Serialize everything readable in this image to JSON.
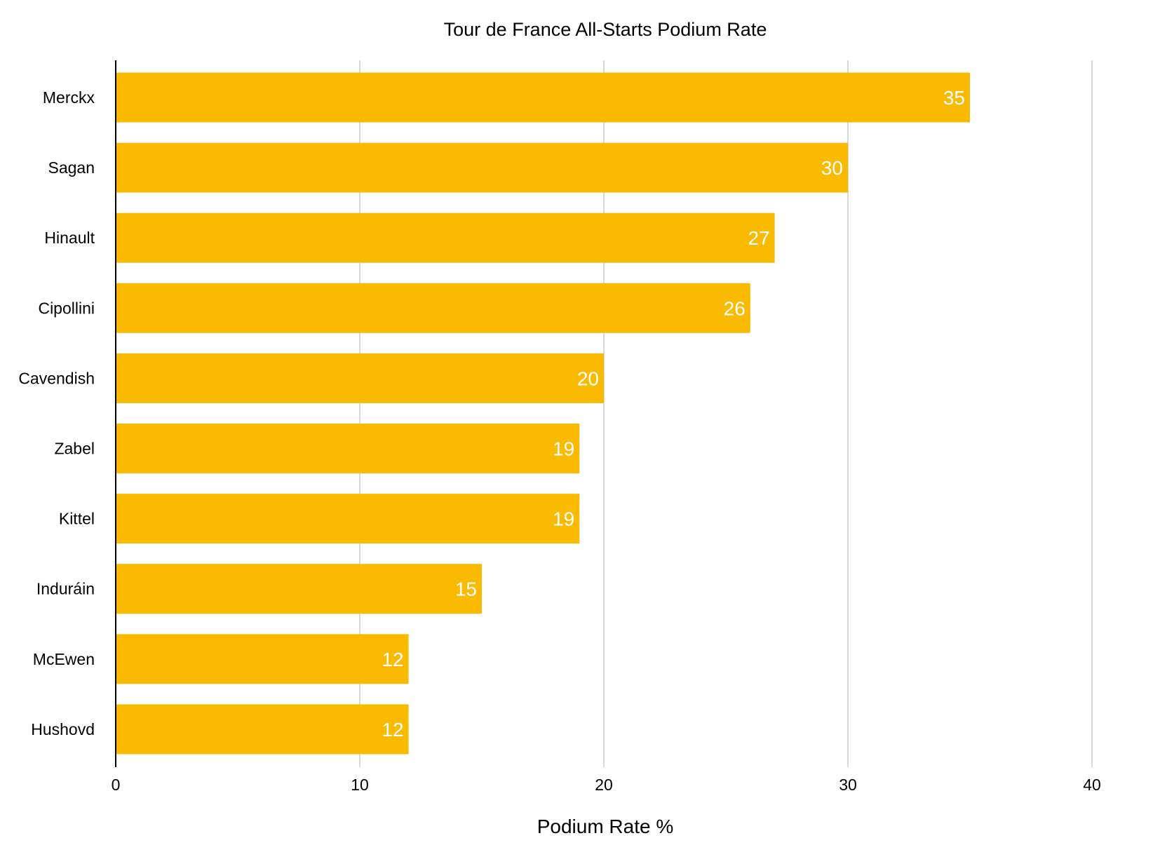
{
  "chart_data": {
    "type": "bar",
    "orientation": "horizontal",
    "title": "Tour de France All-Starts Podium Rate",
    "xlabel": "Podium Rate %",
    "ylabel": "",
    "xlim": [
      0,
      40
    ],
    "x_ticks": [
      "0",
      "10",
      "20",
      "30",
      "40"
    ],
    "grid": true,
    "legend": "none",
    "categories": [
      "Merckx",
      "Sagan",
      "Hinault",
      "Cipollini",
      "Cavendish",
      "Zabel",
      "Kittel",
      "Induráin",
      "McEwen",
      "Hushovd"
    ],
    "values": [
      35,
      30,
      27,
      26,
      20,
      19,
      19,
      15,
      12,
      12
    ],
    "data_labels": [
      "35",
      "30",
      "27",
      "26",
      "20",
      "19",
      "19",
      "15",
      "12",
      "12"
    ],
    "colors": {
      "bar": "#F9BA00",
      "label": "#ffffff",
      "grid": "#cccccc",
      "axis": "#000000",
      "text": "#000000"
    }
  }
}
